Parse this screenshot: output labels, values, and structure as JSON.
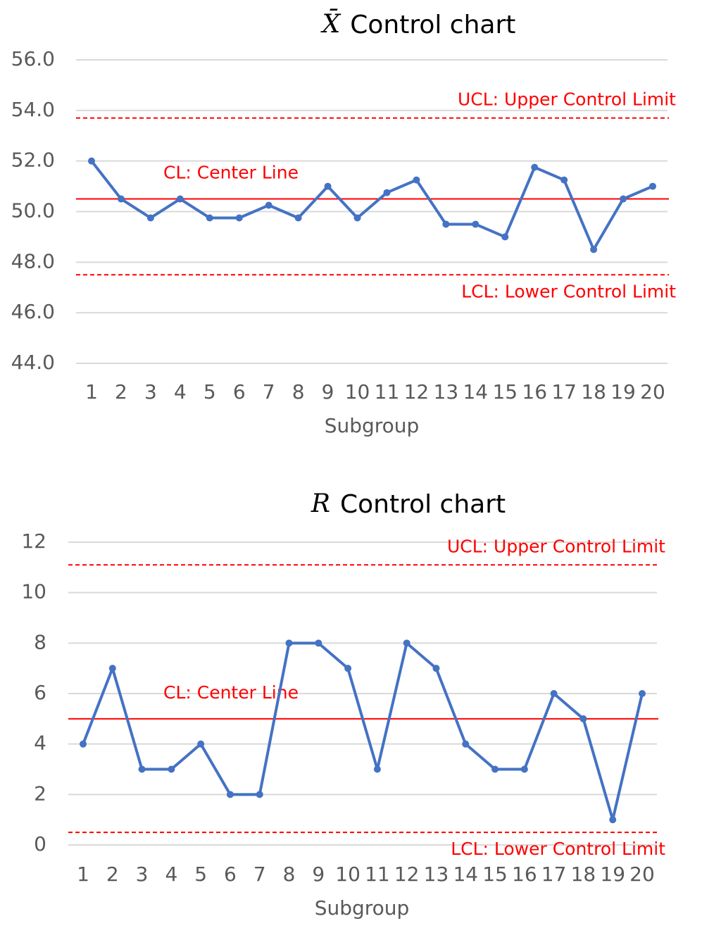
{
  "chart_data": [
    {
      "type": "line",
      "title_symbol": "X̄",
      "title": "Control chart",
      "x_label": "Subgroup",
      "x": [
        1,
        2,
        3,
        4,
        5,
        6,
        7,
        8,
        9,
        10,
        11,
        12,
        13,
        14,
        15,
        16,
        17,
        18,
        19,
        20
      ],
      "series": [
        {
          "color": "#4472c4",
          "values": [
            52.0,
            50.5,
            49.75,
            50.5,
            49.75,
            49.75,
            50.25,
            49.75,
            51.0,
            49.75,
            50.75,
            51.25,
            49.5,
            49.5,
            49.0,
            51.75,
            51.25,
            48.5,
            50.5,
            51.0
          ]
        }
      ],
      "ylim": [
        44,
        56
      ],
      "yticks": [
        {
          "value": 44,
          "label": "44.0"
        },
        {
          "value": 46,
          "label": "46.0"
        },
        {
          "value": 48,
          "label": "48.0"
        },
        {
          "value": 50,
          "label": "50.0"
        },
        {
          "value": 52,
          "label": "52.0"
        },
        {
          "value": 54,
          "label": "54.0"
        },
        {
          "value": 56,
          "label": "56.0"
        }
      ],
      "grid": true,
      "reference_lines": [
        {
          "label": "UCL: Upper Control Limit",
          "value": 53.7,
          "style": "dashed",
          "color": "#ff0000"
        },
        {
          "label": "CL: Center Line",
          "value": 50.5,
          "style": "solid",
          "color": "#ff0000"
        },
        {
          "label": "LCL: Lower Control Limit",
          "value": 47.5,
          "style": "dashed",
          "color": "#ff0000"
        }
      ]
    },
    {
      "type": "line",
      "title_symbol": "R",
      "title": "Control chart",
      "x_label": "Subgroup",
      "x": [
        1,
        2,
        3,
        4,
        5,
        6,
        7,
        8,
        9,
        10,
        11,
        12,
        13,
        14,
        15,
        16,
        17,
        18,
        19,
        20
      ],
      "series": [
        {
          "color": "#4472c4",
          "values": [
            4,
            7,
            3,
            3,
            4,
            2,
            2,
            8,
            8,
            7,
            3,
            8,
            7,
            4,
            3,
            3,
            6,
            5,
            1,
            6
          ]
        }
      ],
      "ylim": [
        0,
        12
      ],
      "yticks": [
        0,
        2,
        4,
        6,
        8,
        10,
        12
      ],
      "grid": true,
      "reference_lines": [
        {
          "label": "UCL: Upper Control Limit",
          "value": 11.1,
          "style": "dashed",
          "color": "#ff0000"
        },
        {
          "label": "CL: Center Line",
          "value": 5,
          "style": "solid",
          "color": "#ff0000"
        },
        {
          "label": "LCL: Lower Control Limit",
          "value": 0.5,
          "style": "dashed",
          "color": "#ff0000"
        }
      ]
    }
  ]
}
